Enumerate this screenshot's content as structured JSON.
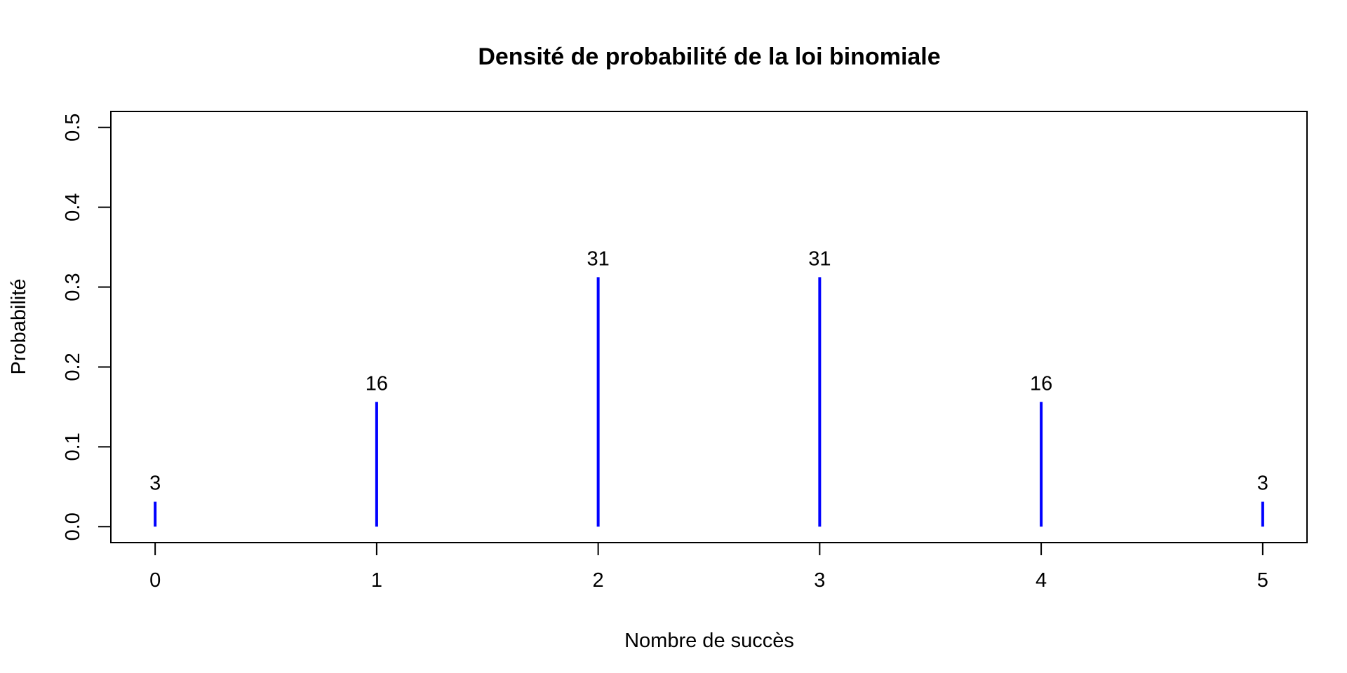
{
  "chart_data": {
    "type": "bar",
    "title": "Densité de probabilité de la loi binomiale",
    "xlabel": "Nombre de succès",
    "ylabel": "Probabilité",
    "x": [
      0,
      1,
      2,
      3,
      4,
      5
    ],
    "values": [
      0.03125,
      0.15625,
      0.3125,
      0.3125,
      0.15625,
      0.03125
    ],
    "data_labels": [
      "3",
      "16",
      "31",
      "31",
      "16",
      "3"
    ],
    "xticks": [
      "0",
      "1",
      "2",
      "3",
      "4",
      "5"
    ],
    "yticks": [
      "0.0",
      "0.1",
      "0.2",
      "0.3",
      "0.4",
      "0.5"
    ],
    "xlim": [
      -0.2,
      5.2
    ],
    "ylim": [
      -0.02,
      0.52
    ],
    "grid": false,
    "legend": "none",
    "color": "#0000ff"
  }
}
